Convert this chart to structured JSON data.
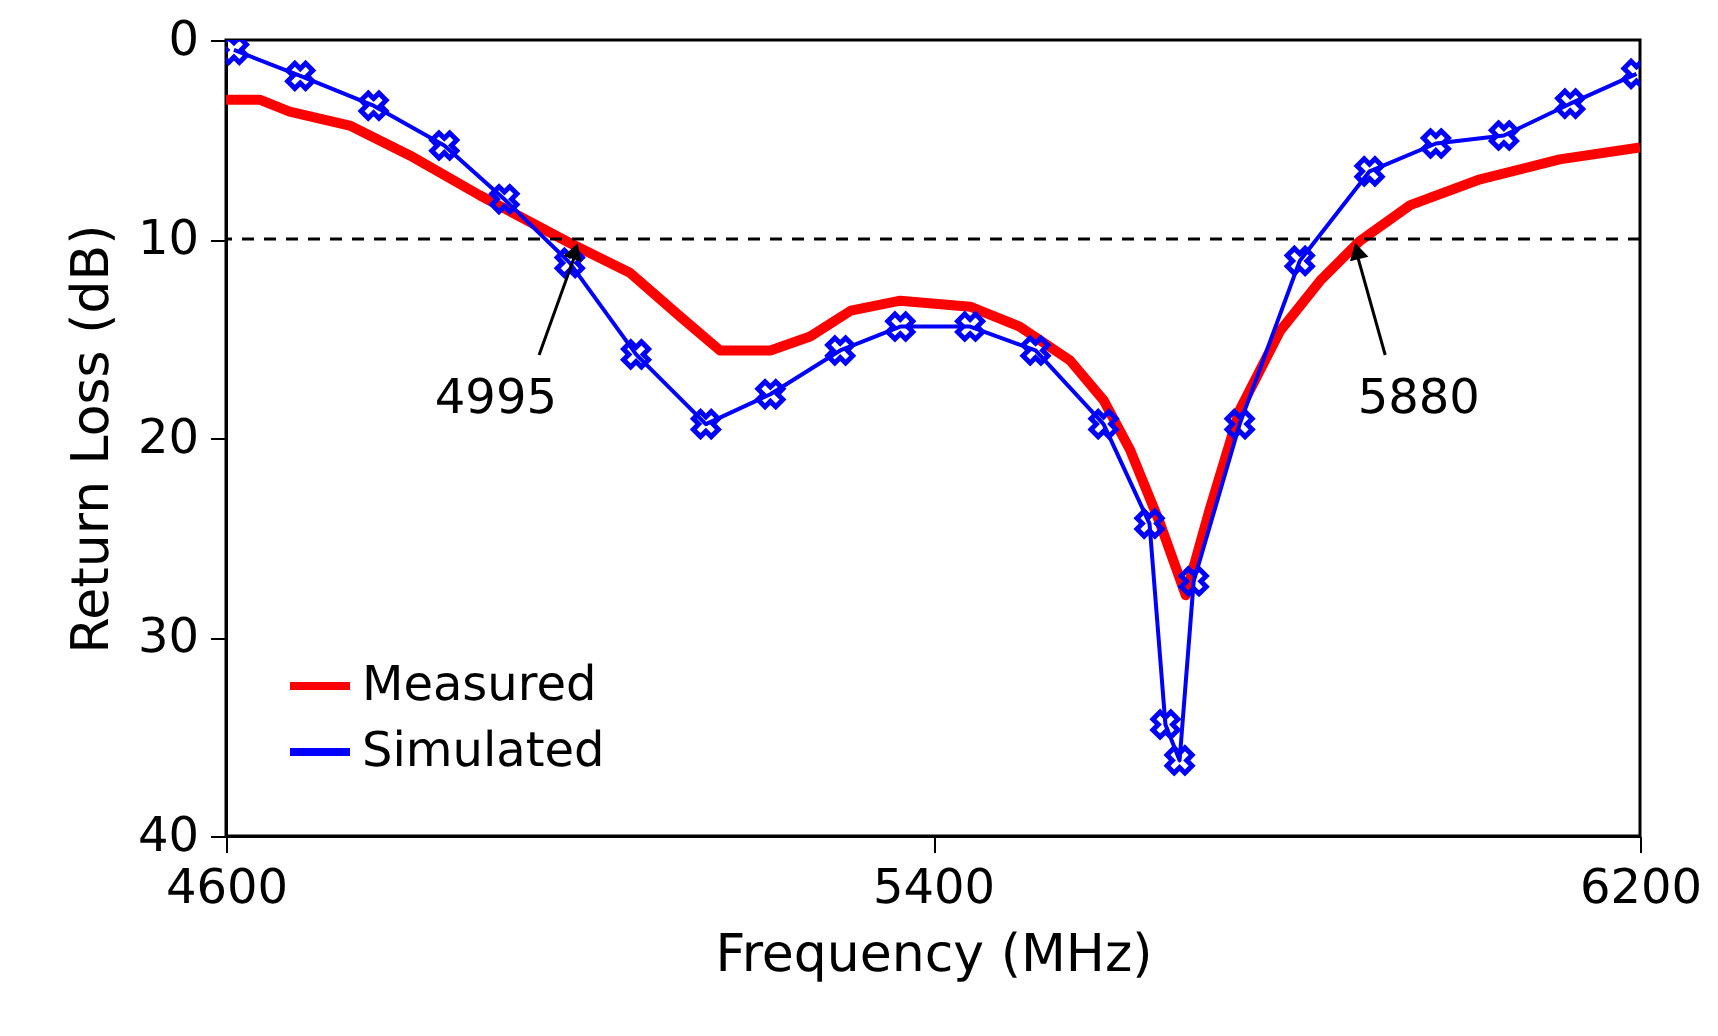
{
  "chart_data": {
    "type": "line",
    "xlabel": "Frequency (MHz)",
    "ylabel": "Return Loss (dB)",
    "xlim": [
      4600,
      6200
    ],
    "xticks": [
      4600,
      5400,
      6200
    ],
    "ylim": [
      40,
      0
    ],
    "yticks": [
      0,
      10,
      20,
      30,
      40
    ],
    "grid": false,
    "legend": "bottom left",
    "line_style": "solid",
    "series": [
      {
        "name": "Measured",
        "color": "#ff0000",
        "marker": "none",
        "x": [
          4600,
          4638,
          4672,
          4740,
          4808,
          4887,
          4989,
          5057,
          5114,
          5159,
          5216,
          5261,
          5307,
          5363,
          5442,
          5498,
          5555,
          5593,
          5623,
          5657,
          5686,
          5713,
          5747,
          5793,
          5838,
          5883,
          5940,
          6019,
          6109,
          6200
        ],
        "values": [
          3.0,
          3.0,
          3.6,
          4.3,
          5.8,
          7.8,
          10.2,
          11.7,
          13.9,
          15.6,
          15.6,
          14.9,
          13.6,
          13.1,
          13.4,
          14.4,
          16.1,
          18.1,
          20.6,
          24.3,
          27.9,
          23.6,
          18.6,
          14.6,
          12.1,
          10.1,
          8.3,
          7.0,
          6.0,
          5.4
        ]
      },
      {
        "name": "Simulated",
        "color": "#0000ff",
        "marker": "cross",
        "x": [
          4609,
          4684,
          4767,
          4847,
          4915,
          4989,
          5064,
          5143,
          5216,
          5295,
          5363,
          5442,
          5516,
          5593,
          5645,
          5663,
          5679,
          5695,
          5747,
          5815,
          5894,
          5969,
          6046,
          6121,
          6196
        ],
        "values": [
          0.5,
          1.8,
          3.3,
          5.3,
          8.0,
          11.2,
          15.8,
          19.3,
          17.8,
          15.6,
          14.4,
          14.4,
          15.6,
          19.3,
          24.3,
          34.4,
          36.2,
          27.2,
          19.3,
          11.1,
          6.6,
          5.2,
          4.8,
          3.2,
          1.7
        ]
      }
    ],
    "ref_lines": [
      {
        "axis": "y",
        "value": 10,
        "color": "#000000",
        "line_style": "dashed"
      }
    ],
    "annotations": [
      {
        "text": "4995",
        "x": 4995,
        "y": 10
      },
      {
        "text": "5880",
        "x": 5880,
        "y": 10
      }
    ]
  }
}
